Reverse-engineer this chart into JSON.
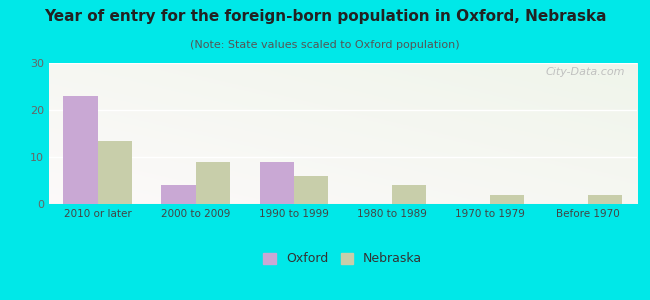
{
  "title": "Year of entry for the foreign-born population in Oxford, Nebraska",
  "subtitle": "(Note: State values scaled to Oxford population)",
  "categories": [
    "2010 or later",
    "2000 to 2009",
    "1990 to 1999",
    "1980 to 1989",
    "1970 to 1979",
    "Before 1970"
  ],
  "oxford_values": [
    23,
    4,
    9,
    0,
    0,
    0
  ],
  "nebraska_values": [
    13.5,
    9,
    6,
    4,
    2,
    2
  ],
  "oxford_color": "#c9a8d4",
  "nebraska_color": "#c8ceaa",
  "background_outer": "#00e8e8",
  "background_inner_topleft": "#f0f8f0",
  "background_inner_bottomright": "#e0eedd",
  "ylim": [
    0,
    30
  ],
  "yticks": [
    0,
    10,
    20,
    30
  ],
  "bar_width": 0.35,
  "legend_labels": [
    "Oxford",
    "Nebraska"
  ],
  "watermark": "City-Data.com"
}
